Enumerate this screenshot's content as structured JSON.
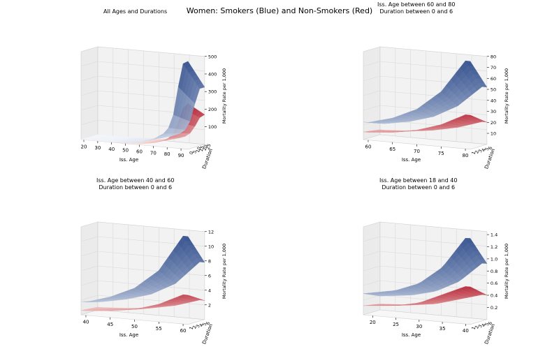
{
  "suptitle": "Women: Smokers (Blue) and Non-Smokers (Red)",
  "colors": {
    "smoker_high": "#2c4a8a",
    "smoker_mid": "#6baed6",
    "nonsmoker_high": "#b2182b",
    "nonsmoker_low": "#f4a582",
    "pane": "#f2f2f2",
    "grid": "#d9d9d9"
  },
  "chart_data": [
    {
      "type": "surface",
      "title": "All Ages and Durations",
      "xlabel": "Iss. Age",
      "ylabel": "Duration",
      "zlabel": "Mortality Rate per 1,000",
      "x_ticks": [
        "20",
        "30",
        "40",
        "50",
        "60",
        "70",
        "80",
        "90"
      ],
      "y_ticks": [
        "0",
        "5",
        "10",
        "15",
        "20",
        "25"
      ],
      "z_ticks": [
        "100",
        "200",
        "300",
        "400",
        "500"
      ],
      "xlim": [
        18,
        95
      ],
      "ylim": [
        0,
        25
      ],
      "zlim": [
        0,
        500
      ],
      "series": [
        {
          "x": [
            18,
            40,
            60,
            70,
            80,
            85,
            88,
            90,
            92,
            95
          ],
          "surface_peak": [
            1,
            2,
            12,
            40,
            90,
            200,
            350,
            450,
            495,
            500
          ]
        },
        {
          "x": [
            18,
            40,
            60,
            70,
            80,
            85,
            88,
            90,
            92,
            95
          ],
          "surface_peak": [
            0.5,
            1,
            5,
            18,
            45,
            90,
            150,
            200,
            240,
            260
          ]
        }
      ]
    },
    {
      "type": "surface",
      "title": "Iss. Age between 60 and 80\nDuration between 0 and 6",
      "xlabel": "Iss. Age",
      "ylabel": "Duration",
      "zlabel": "Mortality Rate per 1,000",
      "x_ticks": [
        "60",
        "65",
        "70",
        "75",
        "80"
      ],
      "y_ticks": [
        "1",
        "2",
        "3",
        "4",
        "5",
        "6"
      ],
      "z_ticks": [
        "10",
        "20",
        "30",
        "40",
        "50",
        "60",
        "70",
        "80"
      ],
      "xlim": [
        59,
        81
      ],
      "ylim": [
        1,
        6
      ],
      "zlim": [
        0,
        80
      ],
      "series": [
        {
          "x": [
            60,
            65,
            70,
            75,
            80
          ],
          "surface_peak": [
            16,
            22,
            32,
            50,
            80
          ]
        },
        {
          "x": [
            60,
            65,
            70,
            75,
            80
          ],
          "surface_peak": [
            7,
            9,
            13,
            20,
            31
          ]
        }
      ]
    },
    {
      "type": "surface",
      "title": "Iss. Age between 40 and 60\nDuration between 0 and 6",
      "xlabel": "Iss. Age",
      "ylabel": "Duration",
      "zlabel": "Mortality Rate per 1,000",
      "x_ticks": [
        "40",
        "45",
        "50",
        "55",
        "60"
      ],
      "y_ticks": [
        "1",
        "2",
        "3",
        "4",
        "5",
        "6"
      ],
      "z_ticks": [
        "2",
        "4",
        "6",
        "8",
        "10",
        "12"
      ],
      "xlim": [
        39,
        61
      ],
      "ylim": [
        1,
        6
      ],
      "zlim": [
        0,
        12
      ],
      "series": [
        {
          "x": [
            40,
            45,
            50,
            55,
            60
          ],
          "surface_peak": [
            1.8,
            2.8,
            4.3,
            7.0,
            12.0
          ]
        },
        {
          "x": [
            40,
            45,
            50,
            55,
            60
          ],
          "surface_peak": [
            0.6,
            0.9,
            1.4,
            2.4,
            4.0
          ]
        }
      ]
    },
    {
      "type": "surface",
      "title": "Iss. Age between 18 and 40\nDuration between 0 and 6",
      "xlabel": "Iss. Age",
      "ylabel": "Duration",
      "zlabel": "Mortality Rate per 1,000",
      "x_ticks": [
        "20",
        "25",
        "30",
        "35",
        "40"
      ],
      "y_ticks": [
        "1",
        "2",
        "3",
        "4",
        "5",
        "6"
      ],
      "z_ticks": [
        "0.2",
        "0.4",
        "0.6",
        "0.8",
        "1.0",
        "1.2",
        "1.4"
      ],
      "xlim": [
        18,
        41
      ],
      "ylim": [
        1,
        6
      ],
      "zlim": [
        0,
        1.45
      ],
      "series": [
        {
          "x": [
            18,
            25,
            30,
            35,
            40
          ],
          "surface_peak": [
            0.35,
            0.45,
            0.6,
            0.9,
            1.42
          ]
        },
        {
          "x": [
            18,
            25,
            30,
            35,
            40
          ],
          "surface_peak": [
            0.15,
            0.2,
            0.28,
            0.45,
            0.62
          ]
        }
      ]
    }
  ]
}
